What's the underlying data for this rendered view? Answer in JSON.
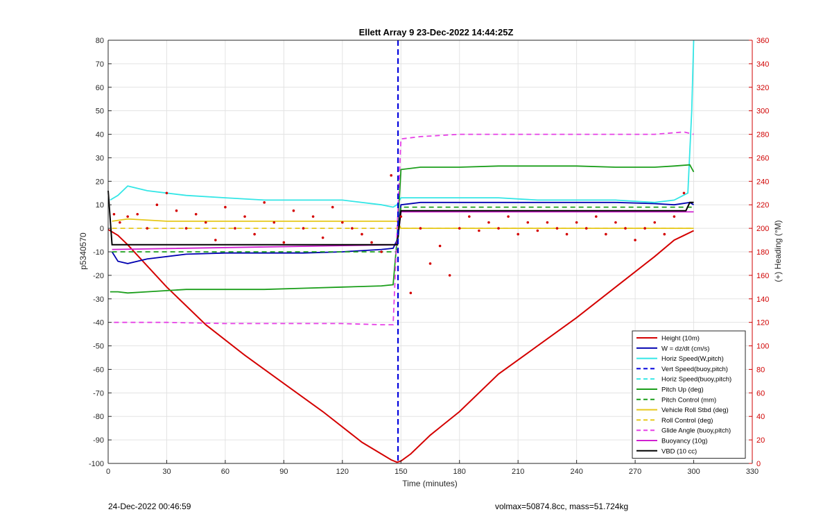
{
  "chart_data": {
    "type": "line",
    "title": "Ellett Array 9 23-Dec-2022 14:44:25Z",
    "xlabel": "Time (minutes)",
    "ylabel": "p5340570",
    "y2label": "(+) Heading (°M)",
    "xlim": [
      0,
      330
    ],
    "ylim": [
      -100,
      80
    ],
    "y2lim": [
      0,
      360
    ],
    "xticks": [
      0,
      30,
      60,
      90,
      120,
      150,
      180,
      210,
      240,
      270,
      300,
      330
    ],
    "yticks": [
      -100,
      -90,
      -80,
      -70,
      -60,
      -50,
      -40,
      -30,
      -20,
      -10,
      0,
      10,
      20,
      30,
      40,
      50,
      60,
      70,
      80
    ],
    "y2ticks": [
      0,
      20,
      40,
      60,
      80,
      100,
      120,
      140,
      160,
      180,
      200,
      220,
      240,
      260,
      280,
      300,
      320,
      340,
      360
    ],
    "grid": true,
    "legend_position": "bottom-right",
    "vertical_marker_x": 148.5,
    "series": [
      {
        "name": "Height (10m)",
        "color": "#d40000",
        "style": "solid",
        "x": [
          0,
          5,
          10,
          20,
          30,
          50,
          70,
          90,
          110,
          130,
          140,
          145,
          148,
          150,
          155,
          165,
          180,
          200,
          220,
          240,
          260,
          280,
          290,
          295,
          300
        ],
        "y": [
          -0.5,
          -3,
          -7,
          -16,
          -25,
          -41,
          -54,
          -66,
          -78,
          -91,
          -96,
          -98.5,
          -99.5,
          -99,
          -96,
          -88,
          -78,
          -62,
          -50,
          -38,
          -25,
          -12,
          -5,
          -3,
          -1
        ]
      },
      {
        "name": "W = dz/dt (cm/s)",
        "color": "#0000b0",
        "style": "solid",
        "x": [
          2,
          5,
          10,
          20,
          40,
          60,
          80,
          100,
          120,
          140,
          146,
          148,
          150,
          160,
          180,
          200,
          220,
          240,
          260,
          280,
          290,
          298,
          300
        ],
        "y": [
          -10,
          -14,
          -15,
          -13,
          -11,
          -10.5,
          -10.5,
          -10.5,
          -10,
          -9,
          -8.5,
          -5,
          10,
          11,
          11,
          11,
          11,
          11,
          11,
          10.5,
          10,
          11,
          10
        ]
      },
      {
        "name": "Horiz Speed(W,pitch)",
        "color": "#33e6e6",
        "style": "solid",
        "x": [
          1,
          5,
          10,
          20,
          40,
          60,
          80,
          100,
          120,
          140,
          146,
          148,
          150,
          160,
          180,
          200,
          220,
          240,
          260,
          280,
          290,
          297,
          299,
          300
        ],
        "y": [
          12,
          14,
          18,
          16,
          14,
          13,
          12,
          12,
          12,
          10,
          9,
          10,
          13,
          13,
          13,
          13,
          12,
          12,
          12,
          11,
          12,
          15,
          50,
          80
        ]
      },
      {
        "name": "Vert Speed(buoy,pitch)",
        "color": "#0000dd",
        "style": "dashed",
        "x": [],
        "y": []
      },
      {
        "name": "Horiz Speed(buoy,pitch)",
        "color": "#33e6e6",
        "style": "dashed",
        "x": [],
        "y": []
      },
      {
        "name": "Pitch Up (deg)",
        "color": "#1a9e1a",
        "style": "solid",
        "x": [
          1,
          5,
          10,
          20,
          40,
          60,
          80,
          100,
          120,
          140,
          146,
          148,
          150,
          160,
          180,
          200,
          220,
          240,
          260,
          280,
          290,
          298,
          300
        ],
        "y": [
          -27,
          -27,
          -27.5,
          -27,
          -26,
          -26,
          -26,
          -25.5,
          -25,
          -24.5,
          -24,
          -5,
          25,
          26,
          26,
          26.5,
          26.5,
          26.5,
          26,
          26,
          26.5,
          27,
          24
        ]
      },
      {
        "name": "Pitch Control (mm)",
        "color": "#1a9e1a",
        "style": "dashed",
        "x": [
          2,
          148,
          150,
          300
        ],
        "y": [
          -10,
          -10,
          9,
          9
        ]
      },
      {
        "name": "Vehicle Roll Stbd (deg)",
        "color": "#e6c81a",
        "style": "solid",
        "x": [
          2,
          10,
          30,
          60,
          90,
          120,
          140,
          148,
          150,
          180,
          210,
          240,
          270,
          300
        ],
        "y": [
          3,
          4,
          3,
          3,
          3,
          3,
          3,
          3,
          0,
          0,
          0,
          0,
          0,
          0
        ]
      },
      {
        "name": "Roll Control (deg)",
        "color": "#e6c81a",
        "style": "dashed",
        "x": [
          2,
          148,
          150,
          300
        ],
        "y": [
          0,
          0,
          0,
          0
        ]
      },
      {
        "name": "Glide Angle (buoy,pitch)",
        "color": "#e640e6",
        "style": "dashed",
        "x": [
          3,
          10,
          30,
          60,
          90,
          120,
          140,
          146,
          150,
          160,
          180,
          200,
          220,
          240,
          260,
          280,
          295,
          300
        ],
        "y": [
          -40,
          -40,
          -40,
          -40.5,
          -40.5,
          -40.5,
          -41,
          -41,
          38,
          39,
          40,
          40,
          40,
          40,
          40,
          40,
          41,
          40
        ]
      },
      {
        "name": "Buoyancy (10g)",
        "color": "#d020d0",
        "style": "solid",
        "x": [
          2,
          148,
          150,
          300
        ],
        "y": [
          -9,
          -7,
          7,
          7
        ]
      },
      {
        "name": "VBD (10 cc)",
        "color": "#000000",
        "style": "solid",
        "x": [
          0,
          2,
          148,
          150,
          296,
          298,
          300
        ],
        "y": [
          16,
          -7,
          -7,
          7.5,
          7.5,
          11,
          11
        ]
      }
    ],
    "heading_points": {
      "name": "(+) Heading (°M)",
      "color": "#d40000",
      "x": [
        3,
        6,
        10,
        15,
        20,
        25,
        30,
        35,
        40,
        45,
        50,
        55,
        60,
        65,
        70,
        75,
        80,
        85,
        90,
        95,
        100,
        105,
        110,
        115,
        120,
        125,
        130,
        135,
        140,
        145,
        150,
        155,
        160,
        165,
        170,
        175,
        180,
        185,
        190,
        195,
        200,
        205,
        210,
        215,
        220,
        225,
        230,
        235,
        240,
        245,
        250,
        255,
        260,
        265,
        270,
        275,
        280,
        285,
        290,
        295
      ],
      "y": [
        212,
        205,
        210,
        212,
        200,
        220,
        230,
        215,
        200,
        212,
        205,
        190,
        218,
        200,
        210,
        195,
        222,
        205,
        188,
        215,
        200,
        210,
        192,
        218,
        205,
        200,
        195,
        188,
        180,
        245,
        210,
        145,
        200,
        170,
        185,
        160,
        200,
        210,
        198,
        205,
        200,
        210,
        195,
        205,
        198,
        205,
        200,
        195,
        205,
        200,
        210,
        195,
        205,
        200,
        190,
        200,
        205,
        195,
        210,
        230
      ]
    }
  },
  "footer": {
    "left": "24-Dec-2022 00:46:59",
    "right": "volmax=50874.8cc, mass=51.724kg"
  }
}
